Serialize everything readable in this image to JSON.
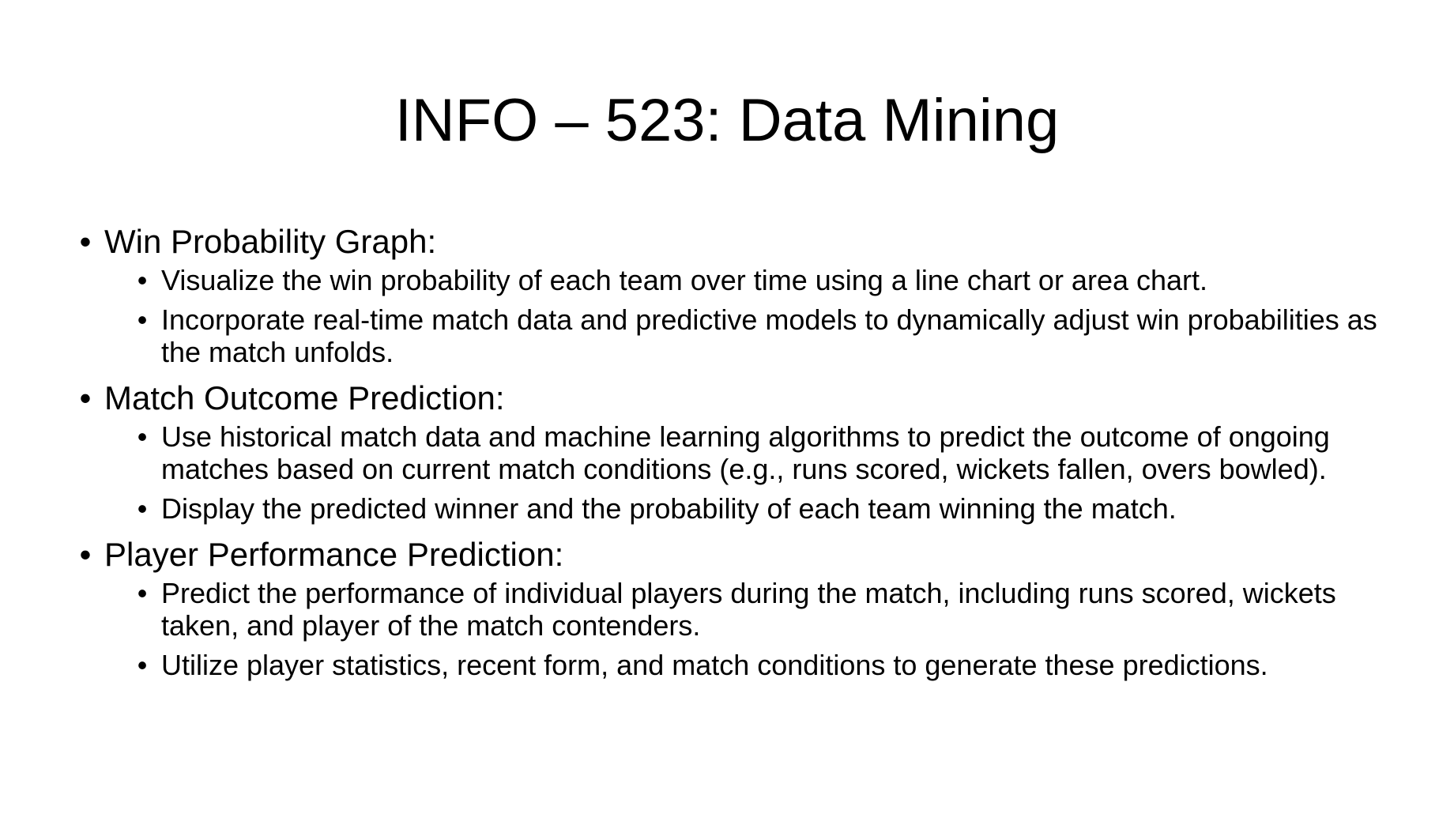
{
  "slide": {
    "title": "INFO – 523: Data Mining",
    "sections": [
      {
        "heading": "Win Probability Graph:",
        "items": [
          "Visualize the win probability of each team over time using a line chart or area chart.",
          "Incorporate real-time match data and predictive models to dynamically adjust win probabilities as the match unfolds."
        ]
      },
      {
        "heading": "Match Outcome Prediction:",
        "items": [
          "Use historical match data and machine learning algorithms to predict the outcome of ongoing matches based on current match conditions (e.g., runs scored, wickets fallen, overs bowled).",
          "Display the predicted winner and the probability of each team winning the match."
        ]
      },
      {
        "heading": "Player Performance Prediction:",
        "items": [
          "Predict the performance of individual players during the match, including runs scored, wickets taken, and player of the match contenders.",
          "Utilize player statistics, recent form, and match conditions to generate these predictions."
        ]
      }
    ],
    "bullet_char": "•"
  }
}
